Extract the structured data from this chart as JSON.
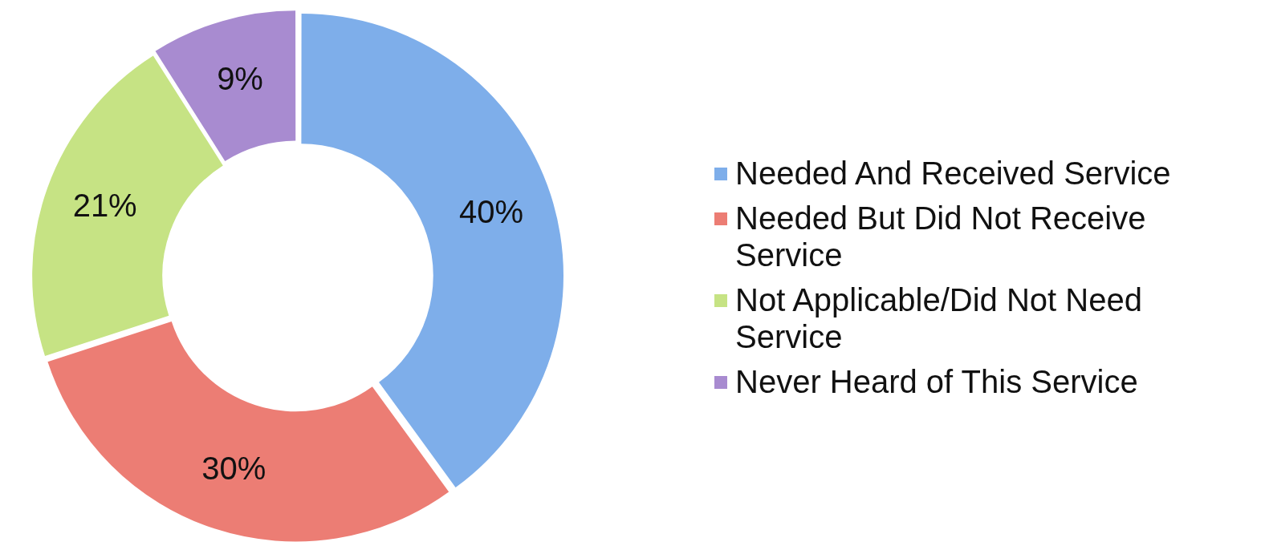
{
  "chart_data": {
    "type": "donut",
    "categories": [
      "Needed And Received Service",
      "Needed But Did Not Receive Service",
      "Not Applicable/Did Not Need Service",
      "Never Heard of This Service"
    ],
    "values": [
      40,
      30,
      21,
      9
    ],
    "colors": [
      "#7eaeea",
      "#ec7d74",
      "#c6e384",
      "#a88bd0"
    ],
    "value_labels": [
      "40%",
      "30%",
      "21%",
      "9%"
    ],
    "legend": "right"
  }
}
